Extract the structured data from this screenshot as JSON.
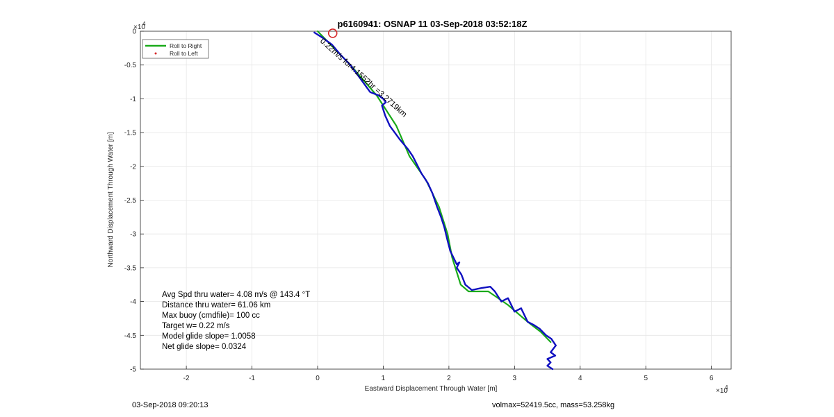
{
  "chart_data": {
    "type": "line",
    "title": "p6160941: OSNAP 11 03-Sep-2018 03:52:18Z",
    "xlabel": "Eastward Displacement Through Water [m]",
    "ylabel": "Northward Displacement Through Water [m]",
    "x_exponent": "×10",
    "x_exponent_power": "4",
    "y_exponent": "×10",
    "y_exponent_power": "4",
    "xlim": [
      -27000,
      63000
    ],
    "ylim": [
      -50000,
      0
    ],
    "x_ticks": [
      -20000,
      -10000,
      0,
      10000,
      20000,
      30000,
      40000,
      50000,
      60000
    ],
    "x_tick_labels": [
      "-2",
      "-1",
      "0",
      "1",
      "2",
      "3",
      "4",
      "5",
      "6"
    ],
    "y_ticks": [
      0,
      -5000,
      -10000,
      -15000,
      -20000,
      -25000,
      -30000,
      -35000,
      -40000,
      -45000,
      -50000
    ],
    "y_tick_labels": [
      "0",
      "-0.5",
      "-1",
      "-1.5",
      "-2",
      "-2.5",
      "-3",
      "-3.5",
      "-4",
      "-4.5",
      "-5"
    ],
    "grid": true,
    "legend_position": "top-left",
    "legend": [
      {
        "name": "Roll to Right",
        "color": "#1aaa1a",
        "style": "line"
      },
      {
        "name": "Roll to Left",
        "color": "#d62728",
        "style": "dot"
      }
    ],
    "series": [
      {
        "name": "Roll to Right",
        "color": "#1aaa1a",
        "x": [
          0,
          2000,
          5000,
          9000,
          12000,
          14000,
          16500,
          18500,
          19800,
          20500,
          21800,
          23000,
          26000,
          29000,
          32000,
          34000,
          35500
        ],
        "y": [
          0,
          -2000,
          -5000,
          -9500,
          -14000,
          -18500,
          -22000,
          -26000,
          -30000,
          -33500,
          -37500,
          -38500,
          -38500,
          -40500,
          -43000,
          -44500,
          -46000
        ]
      },
      {
        "name": "Glider track",
        "color": "#1010c0",
        "x": [
          -500,
          0,
          800,
          1500,
          2200,
          3500,
          5000,
          6500,
          8000,
          9300,
          10000,
          10400,
          9800,
          10300,
          11000,
          12500,
          13800,
          14500,
          15800,
          16800,
          17500,
          18200,
          18800,
          19300,
          19800,
          20200,
          20700,
          21200,
          21600,
          21200,
          21900,
          22500,
          23500,
          25000,
          26300,
          27000,
          28000,
          29000,
          30000,
          31000,
          32000,
          33000,
          33800,
          34800,
          35600,
          36300,
          35500,
          36200,
          35000,
          35500,
          35000,
          35800
        ],
        "y": [
          -200,
          -500,
          -1000,
          -1500,
          -2000,
          -3500,
          -5000,
          -7000,
          -9000,
          -9500,
          -10000,
          -10500,
          -11000,
          -12500,
          -14000,
          -16000,
          -17500,
          -18500,
          -21000,
          -22500,
          -24000,
          -26000,
          -27500,
          -29000,
          -31000,
          -32500,
          -33500,
          -34500,
          -34200,
          -35000,
          -36000,
          -37500,
          -38300,
          -38000,
          -37800,
          -38500,
          -40000,
          -39500,
          -41500,
          -41000,
          -43000,
          -43500,
          -44000,
          -45000,
          -45500,
          -46500,
          -47500,
          -48000,
          -48500,
          -49000,
          -49500,
          -50000
        ]
      }
    ],
    "marker": {
      "name": "start",
      "color": "#d62728",
      "x": 2300,
      "y": -300
    },
    "annotation": "0.22m/s for4.1552hr =3.2719km",
    "info_lines": [
      "Avg Spd thru water=  4.08 m/s @ 143.4 °T",
      "Distance thru water= 61.06 km",
      "Max buoy (cmdfile)= 100 cc",
      "Target w= 0.22 m/s",
      "Model glide slope= 1.0058",
      "Net glide slope= 0.0324"
    ]
  },
  "footer": {
    "left": "03-Sep-2018 09:20:13",
    "right": "volmax=52419.5cc, mass=53.258kg"
  }
}
